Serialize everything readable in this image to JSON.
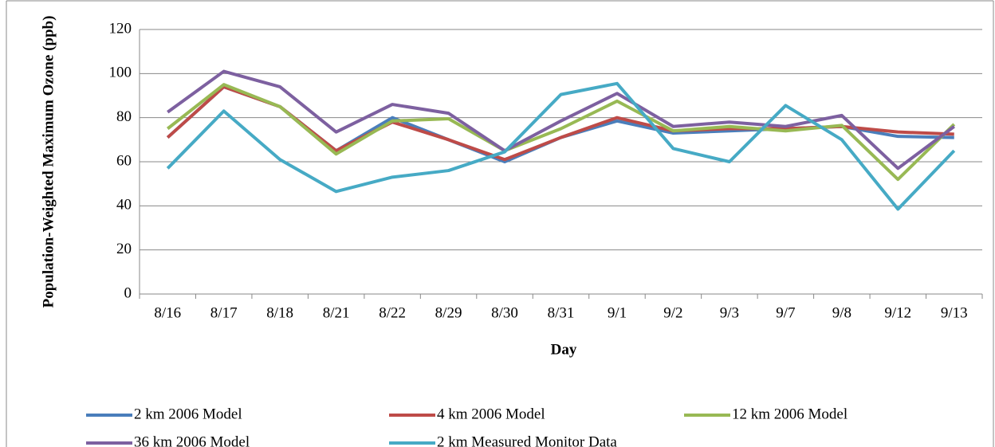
{
  "chart_data": {
    "type": "line",
    "x_label": "Day",
    "y_label": "Population-Weighted Maximum Ozone (ppb)",
    "categories": [
      "8/16",
      "8/17",
      "8/18",
      "8/21",
      "8/22",
      "8/29",
      "8/30",
      "8/31",
      "9/1",
      "9/2",
      "9/3",
      "9/7",
      "9/8",
      "9/12",
      "9/13"
    ],
    "series": [
      {
        "name": "2 km 2006 Model",
        "color": "#4a7ebb",
        "values": [
          71,
          94,
          85,
          65,
          80,
          70,
          60,
          71,
          78.5,
          73,
          74,
          75,
          76,
          71.5,
          71
        ]
      },
      {
        "name": "4 km 2006 Model",
        "color": "#be4b48",
        "values": [
          71,
          94,
          85,
          65,
          78,
          70,
          61,
          71,
          80,
          74,
          75,
          75,
          76,
          73.5,
          72.5
        ]
      },
      {
        "name": "12 km 2006 Model",
        "color": "#98b954",
        "values": [
          75,
          95,
          85,
          63.5,
          78.5,
          79.5,
          65,
          75,
          87.5,
          74,
          76,
          74,
          76.5,
          52,
          77
        ]
      },
      {
        "name": "36 km 2006 Model",
        "color": "#7d60a0",
        "values": [
          82.5,
          101,
          94,
          73.5,
          86,
          82,
          65,
          78.5,
          91,
          76,
          78,
          76,
          81,
          57,
          76
        ]
      },
      {
        "name": "2 km Measured Monitor Data",
        "color": "#46aac5",
        "values": [
          57,
          83,
          61,
          46.5,
          53,
          56,
          64.5,
          90.5,
          95.5,
          66,
          60,
          85.5,
          70,
          38.5,
          65
        ]
      }
    ],
    "ylim": [
      0,
      120
    ],
    "yticks": [
      0,
      20,
      40,
      60,
      80,
      100,
      120
    ],
    "grid": true
  }
}
